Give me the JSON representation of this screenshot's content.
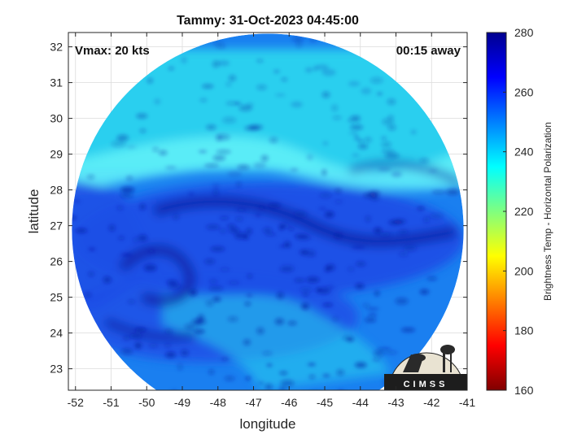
{
  "chart_data": {
    "type": "heatmap",
    "title": "Tammy: 31-Oct-2023 04:45:00",
    "xlabel": "longitude",
    "ylabel": "latitude",
    "xlim": [
      -52.2,
      -41
    ],
    "ylim": [
      22.4,
      32.4
    ],
    "xticks": [
      -52,
      -51,
      -50,
      -49,
      -48,
      -47,
      -46,
      -45,
      -44,
      -43,
      -42,
      -41
    ],
    "yticks": [
      23,
      24,
      25,
      26,
      27,
      28,
      29,
      30,
      31,
      32
    ],
    "grid": true,
    "annotations": {
      "vmax": "Vmax: 20 kts",
      "time_away": "00:15 away"
    },
    "colorbar": {
      "label": "Brightness Temp - Horizontal Polarization",
      "range": [
        160,
        280
      ],
      "ticks": [
        160,
        180,
        200,
        220,
        240,
        260,
        280
      ],
      "colormap": "jet"
    },
    "swath": {
      "center": [
        -46.6,
        26.9
      ],
      "radius_deg": 5.5
    },
    "logo_text": "CIMSS",
    "colors": {
      "deep_blue": "#0a1a9e",
      "blue": "#1f4fe6",
      "cyan": "#2ad4ee",
      "light_cyan": "#5ff0f8"
    }
  }
}
